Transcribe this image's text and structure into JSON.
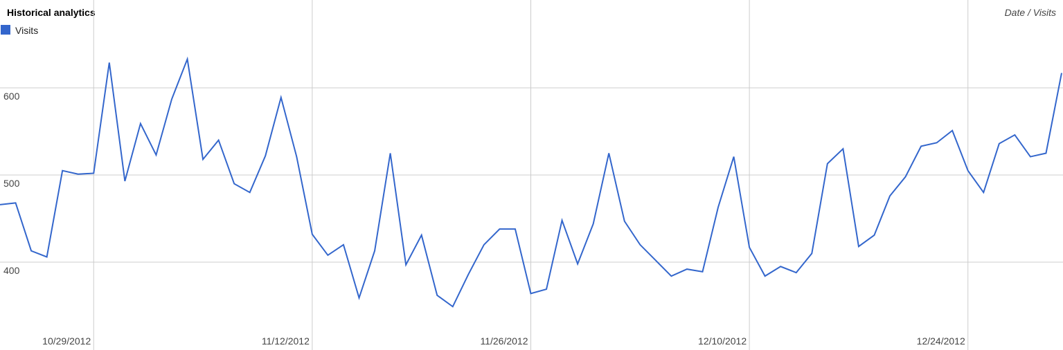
{
  "chart_data": {
    "type": "line",
    "title": "Historical analytics",
    "axis_title": "Date / Visits",
    "categories": [
      null,
      null,
      null,
      null,
      null,
      null,
      "10/29/2012",
      null,
      null,
      null,
      null,
      null,
      null,
      null,
      null,
      null,
      null,
      null,
      null,
      null,
      "11/12/2012",
      null,
      null,
      null,
      null,
      null,
      null,
      null,
      null,
      null,
      null,
      null,
      null,
      null,
      "11/26/2012",
      null,
      null,
      null,
      null,
      null,
      null,
      null,
      null,
      null,
      null,
      null,
      null,
      null,
      "12/10/2012",
      null,
      null,
      null,
      null,
      null,
      null,
      null,
      null,
      null,
      null,
      null,
      null,
      null,
      "12/24/2012",
      null,
      null,
      null,
      null,
      null,
      null
    ],
    "series": [
      {
        "name": "Visits",
        "color": "#3366cc",
        "values": [
          466,
          468,
          413,
          406,
          505,
          501,
          502,
          629,
          493,
          559,
          523,
          587,
          633,
          518,
          540,
          490,
          480,
          522,
          589,
          521,
          432,
          408,
          420,
          359,
          413,
          525,
          397,
          431,
          362,
          349,
          386,
          420,
          438,
          438,
          364,
          369,
          448,
          398,
          444,
          525,
          447,
          420,
          402,
          384,
          392,
          389,
          463,
          521,
          417,
          384,
          395,
          388,
          410,
          513,
          530,
          418,
          431,
          476,
          498,
          533,
          537,
          551,
          505,
          480,
          536,
          546,
          521,
          525,
          617
        ]
      }
    ],
    "ylim": [
      300,
      700
    ],
    "yticks": [
      400,
      500,
      600
    ],
    "grid": true
  }
}
